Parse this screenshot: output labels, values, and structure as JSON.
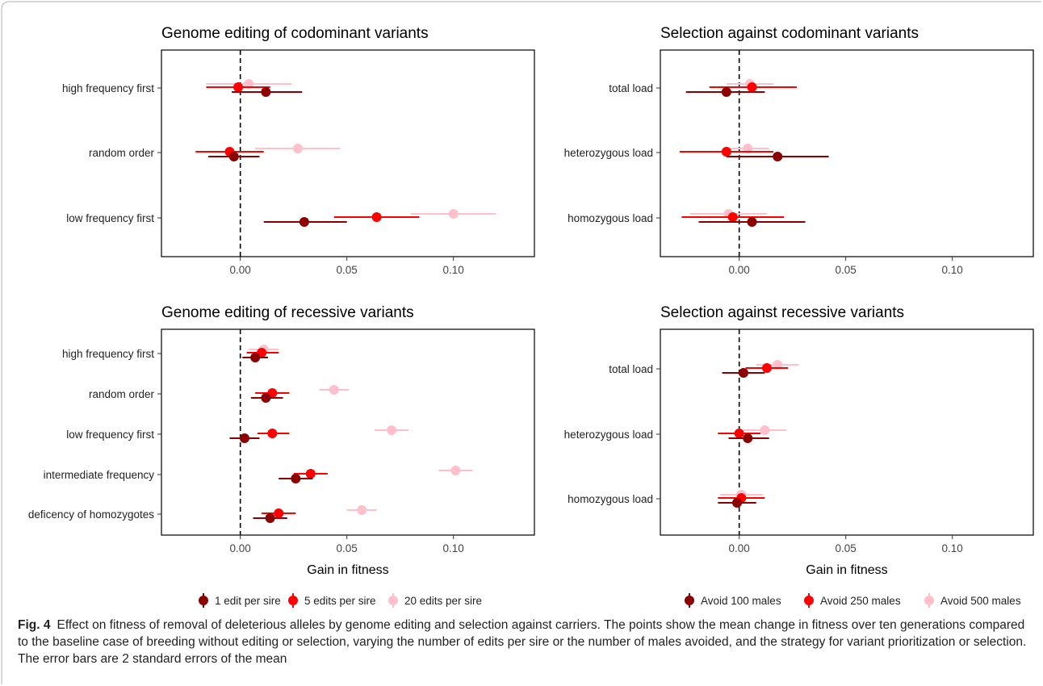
{
  "caption": {
    "label": "Fig. 4",
    "text": "Effect on fitness of removal of deleterious alleles by genome editing and selection against carriers. The points show the mean change in fitness over ten generations compared to the baseline case of breeding without editing or selection, varying the number of edits per sire or the number of males avoided, and the strategy for variant prioritization or selection. The error bars are 2 standard errors of the mean"
  },
  "x_axis_title": "Gain in fitness",
  "legends": {
    "editing": [
      {
        "label": "1 edit per sire",
        "color": "#8b0000"
      },
      {
        "label": "5 edits per sire",
        "color": "#ff0000"
      },
      {
        "label": "20 edits per sire",
        "color": "#ffc0cb"
      }
    ],
    "selection": [
      {
        "label": "Avoid 100 males",
        "color": "#8b0000"
      },
      {
        "label": "Avoid 250 males",
        "color": "#ff0000"
      },
      {
        "label": "Avoid 500 males",
        "color": "#ffc0cb"
      }
    ]
  },
  "chart_data": [
    {
      "type": "scatter",
      "title": "Genome editing of codominant variants",
      "xlabel": "",
      "xlim": [
        -0.037,
        0.138
      ],
      "xticks": [
        "0.00",
        "0.05",
        "0.10"
      ],
      "categories": [
        "high frequency first",
        "random order",
        "low frequency first"
      ],
      "series": [
        {
          "name": "1 edit per sire",
          "color": "#8b0000",
          "points": [
            {
              "mean": 0.012,
              "lo": -0.004,
              "hi": 0.029
            },
            {
              "mean": -0.003,
              "lo": -0.015,
              "hi": 0.009
            },
            {
              "mean": 0.03,
              "lo": 0.011,
              "hi": 0.05
            }
          ]
        },
        {
          "name": "5 edits per sire",
          "color": "#ff0000",
          "points": [
            {
              "mean": -0.001,
              "lo": -0.016,
              "hi": 0.014
            },
            {
              "mean": -0.005,
              "lo": -0.021,
              "hi": 0.011
            },
            {
              "mean": 0.064,
              "lo": 0.044,
              "hi": 0.084
            }
          ]
        },
        {
          "name": "20 edits per sire",
          "color": "#ffc0cb",
          "points": [
            {
              "mean": 0.004,
              "lo": -0.016,
              "hi": 0.024
            },
            {
              "mean": 0.027,
              "lo": 0.007,
              "hi": 0.047
            },
            {
              "mean": 0.1,
              "lo": 0.08,
              "hi": 0.12
            }
          ]
        }
      ]
    },
    {
      "type": "scatter",
      "title": "Selection against codominant variants",
      "xlabel": "",
      "xlim": [
        -0.037,
        0.138
      ],
      "xticks": [
        "0.00",
        "0.05",
        "0.10"
      ],
      "categories": [
        "total load",
        "heterozygous load",
        "homozygous load"
      ],
      "series": [
        {
          "name": "Avoid 100 males",
          "color": "#8b0000",
          "points": [
            {
              "mean": -0.006,
              "lo": -0.025,
              "hi": 0.012
            },
            {
              "mean": 0.018,
              "lo": -0.006,
              "hi": 0.042
            },
            {
              "mean": 0.006,
              "lo": -0.019,
              "hi": 0.031
            }
          ]
        },
        {
          "name": "Avoid 250 males",
          "color": "#ff0000",
          "points": [
            {
              "mean": 0.006,
              "lo": -0.014,
              "hi": 0.027
            },
            {
              "mean": -0.006,
              "lo": -0.028,
              "hi": 0.016
            },
            {
              "mean": -0.003,
              "lo": -0.027,
              "hi": 0.021
            }
          ]
        },
        {
          "name": "Avoid 500 males",
          "color": "#ffc0cb",
          "points": [
            {
              "mean": 0.005,
              "lo": -0.006,
              "hi": 0.016
            },
            {
              "mean": 0.004,
              "lo": -0.006,
              "hi": 0.014
            },
            {
              "mean": -0.005,
              "lo": -0.023,
              "hi": 0.013
            }
          ]
        }
      ]
    },
    {
      "type": "scatter",
      "title": "Genome editing of recessive variants",
      "xlabel": "Gain in fitness",
      "xlim": [
        -0.037,
        0.138
      ],
      "xticks": [
        "0.00",
        "0.05",
        "0.10"
      ],
      "categories": [
        "high frequency first",
        "random order",
        "low frequency first",
        "intermediate frequency",
        "deficency of homozygotes"
      ],
      "series": [
        {
          "name": "1 edit per sire",
          "color": "#8b0000",
          "points": [
            {
              "mean": 0.007,
              "lo": 0.001,
              "hi": 0.013
            },
            {
              "mean": 0.012,
              "lo": 0.005,
              "hi": 0.02
            },
            {
              "mean": 0.002,
              "lo": -0.005,
              "hi": 0.009
            },
            {
              "mean": 0.026,
              "lo": 0.018,
              "hi": 0.034
            },
            {
              "mean": 0.014,
              "lo": 0.006,
              "hi": 0.022
            }
          ]
        },
        {
          "name": "5 edits per sire",
          "color": "#ff0000",
          "points": [
            {
              "mean": 0.01,
              "lo": 0.003,
              "hi": 0.018
            },
            {
              "mean": 0.015,
              "lo": 0.007,
              "hi": 0.023
            },
            {
              "mean": 0.015,
              "lo": 0.008,
              "hi": 0.023
            },
            {
              "mean": 0.033,
              "lo": 0.025,
              "hi": 0.041
            },
            {
              "mean": 0.018,
              "lo": 0.01,
              "hi": 0.026
            }
          ]
        },
        {
          "name": "20 edits per sire",
          "color": "#ffc0cb",
          "points": [
            {
              "mean": 0.011,
              "lo": 0.004,
              "hi": 0.018
            },
            {
              "mean": 0.044,
              "lo": 0.037,
              "hi": 0.051
            },
            {
              "mean": 0.071,
              "lo": 0.063,
              "hi": 0.079
            },
            {
              "mean": 0.101,
              "lo": 0.093,
              "hi": 0.109
            },
            {
              "mean": 0.057,
              "lo": 0.05,
              "hi": 0.064
            }
          ]
        }
      ]
    },
    {
      "type": "scatter",
      "title": "Selection against recessive variants",
      "xlabel": "Gain in fitness",
      "xlim": [
        -0.037,
        0.138
      ],
      "xticks": [
        "0.00",
        "0.05",
        "0.10"
      ],
      "categories": [
        "total load",
        "heterozygous load",
        "homozygous load"
      ],
      "series": [
        {
          "name": "Avoid 100 males",
          "color": "#8b0000",
          "points": [
            {
              "mean": 0.002,
              "lo": -0.008,
              "hi": 0.012
            },
            {
              "mean": 0.004,
              "lo": -0.005,
              "hi": 0.014
            },
            {
              "mean": -0.001,
              "lo": -0.01,
              "hi": 0.008
            }
          ]
        },
        {
          "name": "Avoid 250 males",
          "color": "#ff0000",
          "points": [
            {
              "mean": 0.013,
              "lo": 0.003,
              "hi": 0.023
            },
            {
              "mean": 0.0,
              "lo": -0.01,
              "hi": 0.01
            },
            {
              "mean": 0.001,
              "lo": -0.01,
              "hi": 0.012
            }
          ]
        },
        {
          "name": "Avoid 500 males",
          "color": "#ffc0cb",
          "points": [
            {
              "mean": 0.018,
              "lo": 0.008,
              "hi": 0.028
            },
            {
              "mean": 0.012,
              "lo": 0.002,
              "hi": 0.022
            },
            {
              "mean": 0.001,
              "lo": -0.009,
              "hi": 0.011
            }
          ]
        }
      ]
    }
  ]
}
